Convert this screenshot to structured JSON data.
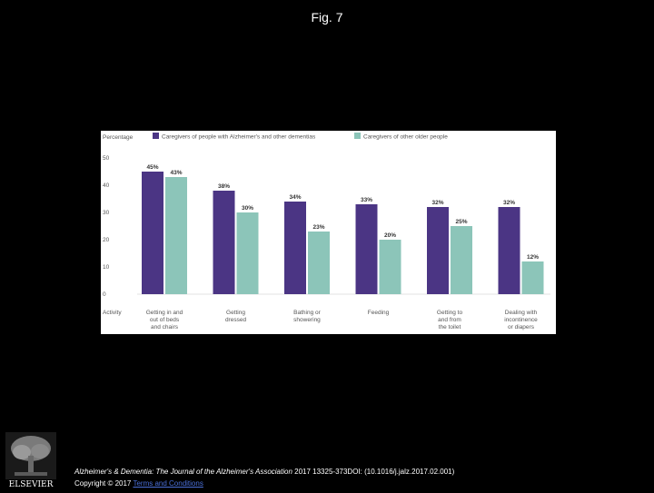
{
  "page": {
    "title": "Fig. 7",
    "citation_journal": "Alzheimer's & Dementia: The Journal of the Alzheimer's Association",
    "citation_rest": "2017 13325-373DOI: (10.1016/j.jalz.2017.02.001)",
    "copyright": "Copyright © 2017",
    "terms_link": "Terms and Conditions",
    "logo_text": "ELSEVIER"
  },
  "colors": {
    "series1": "#4b3584",
    "series2": "#8cc5b9",
    "axis_text": "#555555",
    "grid": "#e3e3e3"
  },
  "chart_data": {
    "type": "bar",
    "ylabel": "Percentage",
    "xlabel": "Activity",
    "ylim": [
      0,
      50
    ],
    "yticks": [
      "0",
      "10",
      "20",
      "30",
      "40",
      "50"
    ],
    "categories": [
      [
        "Getting in and",
        "out of beds",
        "and chairs"
      ],
      [
        "Getting",
        "dressed"
      ],
      [
        "Bathing or",
        "showering"
      ],
      [
        "Feeding"
      ],
      [
        "Getting to",
        "and from",
        "the toilet"
      ],
      [
        "Dealing with",
        "incontinence",
        "or diapers"
      ]
    ],
    "series": [
      {
        "name": "Caregivers of people with Alzheimer's and other dementias",
        "values": [
          45,
          38,
          34,
          33,
          32,
          32
        ],
        "labels": [
          "45%",
          "38%",
          "34%",
          "33%",
          "32%",
          "32%"
        ]
      },
      {
        "name": "Caregivers of other older people",
        "values": [
          43,
          30,
          23,
          20,
          25,
          12
        ],
        "labels": [
          "43%",
          "30%",
          "23%",
          "20%",
          "25%",
          "12%"
        ]
      }
    ],
    "legend": "top",
    "grid": false
  }
}
